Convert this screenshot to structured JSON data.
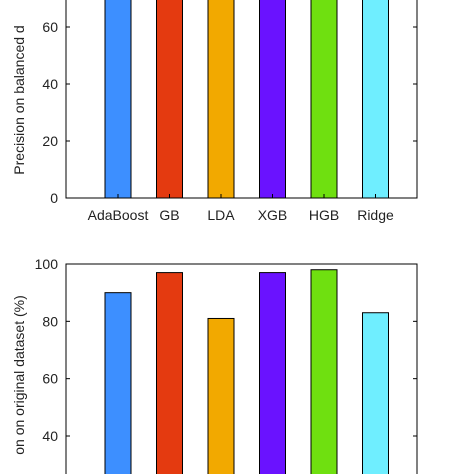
{
  "chart_data": [
    {
      "type": "bar",
      "categories": [
        "AdaBoost",
        "GB",
        "LDA",
        "XGB",
        "HGB",
        "Ridge"
      ],
      "values": [
        70,
        70,
        70,
        70,
        70,
        70
      ],
      "colors": [
        "#3d8fff",
        "#e43a10",
        "#f2a900",
        "#6a12ff",
        "#6fe010",
        "#6feeff"
      ],
      "title": "",
      "xlabel": "",
      "ylabel": "Precision on balanced d",
      "ylim": [
        0,
        70
      ],
      "yticks": [
        "0",
        "20",
        "40",
        "60"
      ],
      "grid": false,
      "note": "bars extend beyond the visible top edge (cropped)"
    },
    {
      "type": "bar",
      "categories": [
        "AdaBoost",
        "GB",
        "LDA",
        "XGB",
        "HGB",
        "Ridge"
      ],
      "values": [
        90,
        97,
        81,
        97,
        98,
        83
      ],
      "colors": [
        "#3d8fff",
        "#e43a10",
        "#f2a900",
        "#6a12ff",
        "#6fe010",
        "#6feeff"
      ],
      "title": "",
      "xlabel": "",
      "ylabel": "on on original dataset (%)",
      "ylim": [
        30,
        100
      ],
      "yticks": [
        "40",
        "60",
        "80",
        "100"
      ],
      "grid": false
    }
  ]
}
